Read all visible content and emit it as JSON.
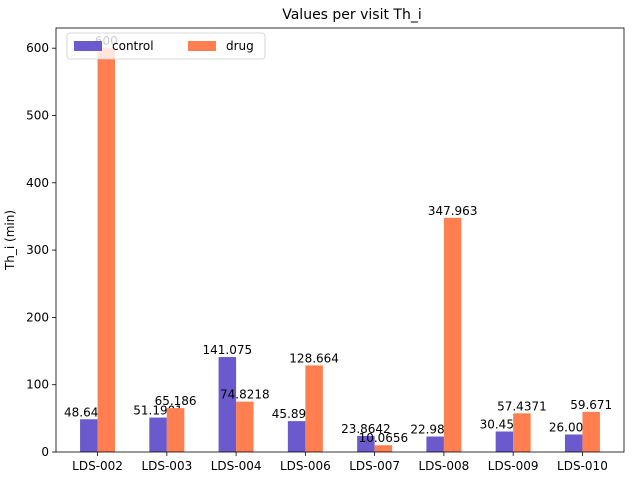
{
  "chart_data": {
    "type": "bar",
    "title": "Values per visit Th_i",
    "xlabel": "",
    "ylabel": "Th_i (min)",
    "categories": [
      "LDS-002",
      "LDS-003",
      "LDS-004",
      "LDS-006",
      "LDS-007",
      "LDS-008",
      "LDS-009",
      "LDS-010"
    ],
    "series": [
      {
        "name": "control",
        "color": "#6a5acd",
        "values": [
          48.6402,
          51.1901,
          141.075,
          45.8943,
          23.8642,
          22.9875,
          30.4513,
          26.0029
        ],
        "labels": [
          "48.6402",
          "51.1901",
          "141.075",
          "45.8943",
          "23.8642",
          "22.9875",
          "30.4513",
          "26.0029"
        ]
      },
      {
        "name": "drug",
        "color": "#ff7f50",
        "values": [
          600,
          65.186,
          74.8218,
          128.664,
          10.0656,
          347.963,
          57.4371,
          59.671
        ],
        "labels": [
          "600",
          "65.186",
          "74.8218",
          "128.664",
          "10.0656",
          "347.963",
          "57.4371",
          "59.671"
        ]
      }
    ],
    "ylim": [
      0,
      630
    ],
    "yticks": [
      0,
      100,
      200,
      300,
      400,
      500,
      600
    ],
    "legend": {
      "placement": "top-left",
      "columns": 2
    },
    "grid": false
  }
}
